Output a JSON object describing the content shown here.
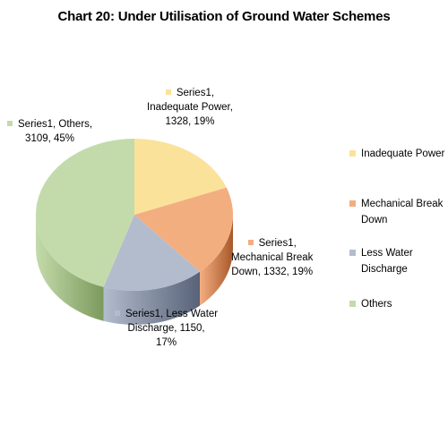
{
  "chart_data": {
    "type": "pie",
    "title": "Chart 20: Under Utilisation of Ground Water Schemes",
    "series_name": "Series1",
    "slices": [
      {
        "label": "Inadequate Power",
        "value": 1328,
        "percent": "19%",
        "color": "#FBE29A",
        "dark": "#C9A94F"
      },
      {
        "label": "Mechanical Break Down",
        "value": 1332,
        "percent": "19%",
        "color": "#F3AE80",
        "dark": "#A8582A"
      },
      {
        "label": "Less Water Discharge",
        "value": 1150,
        "percent": "17%",
        "color": "#B3BCCD",
        "dark": "#586278"
      },
      {
        "label": "Others",
        "value": 3109,
        "percent": "45%",
        "color": "#C3DBAA",
        "dark": "#7C9A5D"
      }
    ],
    "data_labels": [
      {
        "lines": [
          "Series1,",
          "Inadequate Power,",
          "1328, 19%"
        ]
      },
      {
        "lines": [
          "Series1,",
          "Mechanical Break",
          "Down, 1332, 19%"
        ]
      },
      {
        "lines": [
          "Series1, Less Water",
          "Discharge, 1150,",
          "17%"
        ]
      },
      {
        "lines": [
          "Series1, Others,",
          "3109, 45%"
        ]
      }
    ],
    "legend": {
      "position": "right",
      "items": [
        "Inadequate Power",
        "Mechanical Break Down",
        "Less Water Discharge",
        "Others"
      ]
    }
  }
}
